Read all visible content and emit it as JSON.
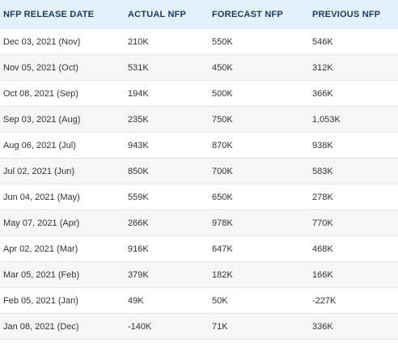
{
  "table": {
    "headers": [
      "NFP RELEASE DATE",
      "ACTUAL NFP",
      "FORECAST NFP",
      "PREVIOUS NFP"
    ],
    "rows": [
      [
        "Dec 03, 2021 (Nov)",
        "210K",
        "550K",
        "546K"
      ],
      [
        "Nov 05, 2021 (Oct)",
        "531K",
        "450K",
        "312K"
      ],
      [
        "Oct 08, 2021 (Sep)",
        "194K",
        "500K",
        "366K"
      ],
      [
        "Sep 03, 2021 (Aug)",
        "235K",
        "750K",
        "1,053K"
      ],
      [
        "Aug 06, 2021 (Jul)",
        "943K",
        "870K",
        "938K"
      ],
      [
        "Jul 02, 2021 (Jun)",
        "850K",
        "700K",
        "583K"
      ],
      [
        "Jun 04, 2021 (May)",
        "559K",
        "650K",
        "278K"
      ],
      [
        "May 07, 2021 (Apr)",
        "266K",
        "978K",
        "770K"
      ],
      [
        "Apr 02, 2021 (Mar)",
        "916K",
        "647K",
        "468K"
      ],
      [
        "Mar 05, 2021 (Feb)",
        "379K",
        "182K",
        "166K"
      ],
      [
        "Feb 05, 2021 (Jan)",
        "49K",
        "50K",
        "-227K"
      ],
      [
        "Jan 08, 2021 (Dec)",
        "-140K",
        "71K",
        "336K"
      ]
    ]
  },
  "colors": {
    "header_bg": "#e3f1fb",
    "header_text": "#1c3a5c",
    "row_alt_bg": "#f6f6f6",
    "cell_text": "#333333"
  }
}
